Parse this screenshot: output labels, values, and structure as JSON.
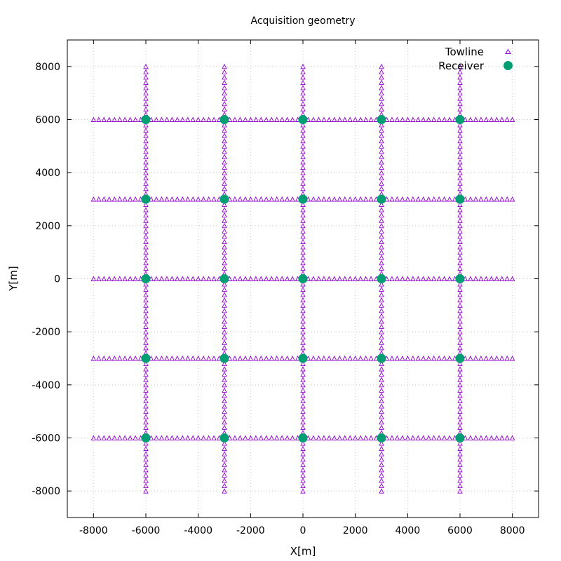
{
  "chart_data": {
    "type": "scatter",
    "title": "Acquisition geometry",
    "xlabel": "X[m]",
    "ylabel": "Y[m]",
    "xlim": [
      -9000,
      9000
    ],
    "ylim": [
      -9000,
      9000
    ],
    "x_ticks": [
      -8000,
      -6000,
      -4000,
      -2000,
      0,
      2000,
      4000,
      6000,
      8000
    ],
    "y_ticks": [
      -8000,
      -6000,
      -4000,
      -2000,
      0,
      2000,
      4000,
      6000,
      8000
    ],
    "x_tick_labels": [
      "-8000",
      "-6000",
      "-4000",
      "-2000",
      "0",
      "2000",
      "4000",
      "6000",
      "8000"
    ],
    "y_tick_labels": [
      "-8000",
      "-6000",
      "-4000",
      "-2000",
      "0",
      "2000",
      "4000",
      "6000",
      "8000"
    ],
    "grid": true,
    "legend_position": "top-right",
    "series": [
      {
        "name": "Towline",
        "marker": "open-triangle",
        "color": "#9400d3",
        "lines": [
          {
            "orientation": "horizontal",
            "y": -6000,
            "x_start": -8000,
            "x_end": 8000,
            "spacing": 200
          },
          {
            "orientation": "horizontal",
            "y": -3000,
            "x_start": -8000,
            "x_end": 8000,
            "spacing": 200
          },
          {
            "orientation": "horizontal",
            "y": 0,
            "x_start": -8000,
            "x_end": 8000,
            "spacing": 200
          },
          {
            "orientation": "horizontal",
            "y": 3000,
            "x_start": -8000,
            "x_end": 8000,
            "spacing": 200
          },
          {
            "orientation": "horizontal",
            "y": 6000,
            "x_start": -8000,
            "x_end": 8000,
            "spacing": 200
          },
          {
            "orientation": "vertical",
            "x": -6000,
            "y_start": -8000,
            "y_end": 8000,
            "spacing": 200
          },
          {
            "orientation": "vertical",
            "x": -3000,
            "y_start": -8000,
            "y_end": 8000,
            "spacing": 200
          },
          {
            "orientation": "vertical",
            "x": 0,
            "y_start": -8000,
            "y_end": 8000,
            "spacing": 200
          },
          {
            "orientation": "vertical",
            "x": 3000,
            "y_start": -8000,
            "y_end": 8000,
            "spacing": 200
          },
          {
            "orientation": "vertical",
            "x": 6000,
            "y_start": -8000,
            "y_end": 8000,
            "spacing": 200
          }
        ]
      },
      {
        "name": "Receiver",
        "marker": "filled-circle",
        "color": "#009e73",
        "x_positions": [
          -6000,
          -3000,
          0,
          3000,
          6000
        ],
        "y_positions": [
          -6000,
          -3000,
          0,
          3000,
          6000
        ]
      }
    ]
  }
}
